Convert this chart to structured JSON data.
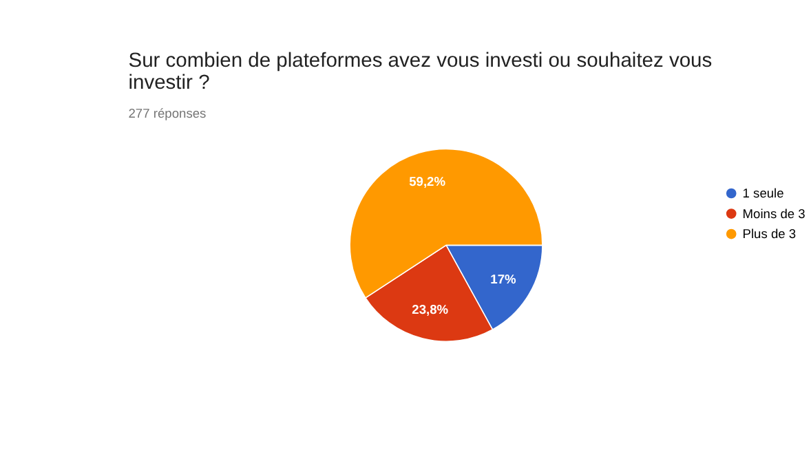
{
  "chart_data": {
    "type": "pie",
    "title": "Sur combien de plateformes avez vous investi ou souhaitez vous investir ?",
    "subtitle": "277 réponses",
    "categories": [
      "1 seule",
      "Moins de 3",
      "Plus de 3"
    ],
    "values": [
      17,
      23.8,
      59.2
    ],
    "colors": [
      "#3366cc",
      "#dc3912",
      "#ff9900"
    ],
    "value_labels": [
      "17%",
      "23,8%",
      "59,2%"
    ],
    "legend": "top right"
  }
}
